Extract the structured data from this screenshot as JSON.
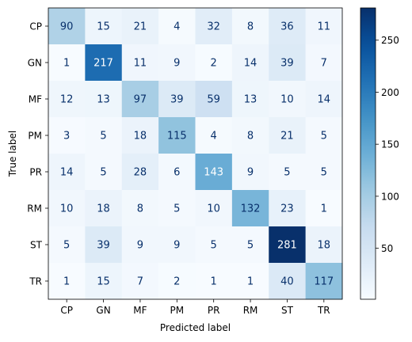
{
  "chart_data": {
    "type": "heatmap",
    "title": "",
    "xlabel": "Predicted label",
    "ylabel": "True label",
    "x_categories": [
      "CP",
      "GN",
      "MF",
      "PM",
      "PR",
      "RM",
      "ST",
      "TR"
    ],
    "y_categories": [
      "CP",
      "GN",
      "MF",
      "PM",
      "PR",
      "RM",
      "ST",
      "TR"
    ],
    "values": [
      [
        90,
        15,
        21,
        4,
        32,
        8,
        36,
        11
      ],
      [
        1,
        217,
        11,
        9,
        2,
        14,
        39,
        7
      ],
      [
        12,
        13,
        97,
        39,
        59,
        13,
        10,
        14
      ],
      [
        3,
        5,
        18,
        115,
        4,
        8,
        21,
        5
      ],
      [
        14,
        5,
        28,
        6,
        143,
        9,
        5,
        5
      ],
      [
        10,
        18,
        8,
        5,
        10,
        132,
        23,
        1
      ],
      [
        5,
        39,
        9,
        9,
        5,
        5,
        281,
        18
      ],
      [
        1,
        15,
        7,
        2,
        1,
        1,
        40,
        117
      ]
    ],
    "colormap": "Blues",
    "color_range": [
      1,
      281
    ],
    "colorbar_ticks": [
      50,
      100,
      150,
      200,
      250
    ],
    "grid": false
  }
}
